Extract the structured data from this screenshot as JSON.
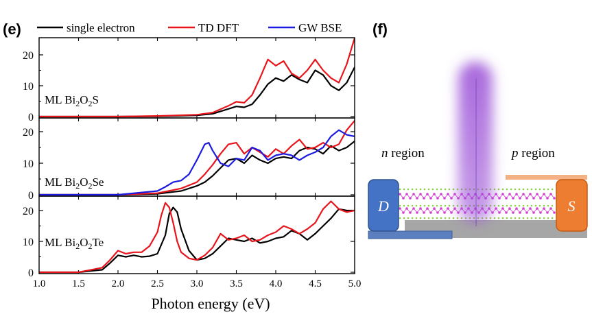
{
  "chart_data": {
    "type": "line",
    "panel_labels": {
      "e": "(e)",
      "f": "(f)"
    },
    "legend": {
      "placement": "top",
      "entries": [
        {
          "name": "single electron",
          "color": "#000000"
        },
        {
          "name": "TD DFT",
          "color": "#e8141b"
        },
        {
          "name": "GW BSE",
          "color": "#1a1ae0"
        }
      ]
    },
    "xlabel": "Photon energy (eV)",
    "xlim": [
      1.0,
      5.0
    ],
    "xticks": [
      "1.0",
      "1.5",
      "2.0",
      "2.5",
      "3.0",
      "3.5",
      "4.0",
      "4.5",
      "5.0"
    ],
    "panels": [
      {
        "label_main": "ML Bi",
        "sub1": "2",
        "label_mid": "O",
        "sub2": "2",
        "label_end": "S",
        "ylim": [
          0,
          25
        ],
        "yticks": [
          "0",
          "10",
          "20"
        ],
        "series": [
          {
            "name": "single electron",
            "color": "#000000",
            "x": [
              1.0,
              2.0,
              2.5,
              3.0,
              3.2,
              3.4,
              3.5,
              3.6,
              3.7,
              3.8,
              3.9,
              4.0,
              4.1,
              4.2,
              4.3,
              4.4,
              4.5,
              4.6,
              4.7,
              4.8,
              4.9,
              5.0
            ],
            "y": [
              0,
              0,
              0.1,
              0.4,
              0.9,
              2.5,
              3.3,
              3.0,
              4.0,
              7.0,
              10.5,
              12.5,
              11.5,
              13.5,
              12.0,
              11.0,
              15.0,
              13.5,
              10.0,
              8.5,
              11.0,
              16.0
            ]
          },
          {
            "name": "TD DFT",
            "color": "#e8141b",
            "x": [
              1.0,
              2.0,
              2.5,
              3.0,
              3.2,
              3.4,
              3.5,
              3.6,
              3.7,
              3.8,
              3.9,
              4.0,
              4.1,
              4.2,
              4.3,
              4.4,
              4.5,
              4.6,
              4.7,
              4.8,
              4.9,
              5.0
            ],
            "y": [
              0,
              0,
              0.2,
              0.6,
              1.3,
              3.5,
              4.8,
              4.5,
              7.0,
              12.5,
              18.5,
              16.5,
              18.0,
              14.0,
              12.5,
              15.0,
              18.5,
              15.0,
              12.5,
              11.0,
              17.0,
              25.5
            ]
          }
        ]
      },
      {
        "label_main": "ML Bi",
        "sub1": "2",
        "label_mid": "O",
        "sub2": "2",
        "label_end": "Se",
        "ylim": [
          0,
          25
        ],
        "yticks": [
          "0",
          "10",
          "20"
        ],
        "series": [
          {
            "name": "single electron",
            "color": "#000000",
            "x": [
              1.0,
              2.0,
              2.5,
              2.8,
              3.0,
              3.1,
              3.2,
              3.3,
              3.4,
              3.5,
              3.6,
              3.7,
              3.8,
              3.9,
              4.0,
              4.1,
              4.2,
              4.3,
              4.4,
              4.5,
              4.6,
              4.7,
              4.8,
              4.9,
              5.0
            ],
            "y": [
              0,
              0,
              0.3,
              1.2,
              2.8,
              4.0,
              6.0,
              8.5,
              11.0,
              11.5,
              10.0,
              12.5,
              11.0,
              10.0,
              11.5,
              12.0,
              11.5,
              14.0,
              15.0,
              14.5,
              13.0,
              15.5,
              14.0,
              15.0,
              17.0
            ]
          },
          {
            "name": "TD DFT",
            "color": "#e8141b",
            "x": [
              1.0,
              2.0,
              2.5,
              2.8,
              3.0,
              3.1,
              3.2,
              3.3,
              3.4,
              3.5,
              3.6,
              3.7,
              3.8,
              3.9,
              4.0,
              4.1,
              4.2,
              4.3,
              4.4,
              4.5,
              4.6,
              4.7,
              4.8,
              4.9,
              5.0
            ],
            "y": [
              0,
              0,
              0.5,
              2.0,
              4.0,
              6.5,
              9.5,
              13.0,
              16.0,
              16.5,
              13.0,
              15.0,
              13.5,
              12.0,
              14.5,
              13.0,
              15.5,
              17.5,
              14.5,
              15.0,
              16.5,
              15.0,
              16.0,
              20.5,
              23.5
            ]
          },
          {
            "name": "GW BSE",
            "color": "#1a1ae0",
            "x": [
              1.0,
              2.0,
              2.5,
              2.6,
              2.7,
              2.8,
              2.9,
              3.0,
              3.1,
              3.15,
              3.2,
              3.3,
              3.4,
              3.5,
              3.6,
              3.7,
              3.8,
              3.9,
              4.0,
              4.1,
              4.2,
              4.3,
              4.4,
              4.5,
              4.6,
              4.7,
              4.8,
              4.9,
              5.0
            ],
            "y": [
              0,
              0,
              1.2,
              2.5,
              4.0,
              4.5,
              6.5,
              11.0,
              16.0,
              16.5,
              14.0,
              10.0,
              9.0,
              11.5,
              11.0,
              15.0,
              14.0,
              11.0,
              12.5,
              13.0,
              12.5,
              11.0,
              12.5,
              13.5,
              15.0,
              18.5,
              20.5,
              19.0,
              18.5
            ]
          }
        ]
      },
      {
        "label_main": "ML Bi",
        "sub1": "2",
        "label_mid": "O",
        "sub2": "2",
        "label_end": "Te",
        "ylim": [
          0,
          25
        ],
        "yticks": [
          "0",
          "10",
          "20"
        ],
        "series": [
          {
            "name": "single electron",
            "color": "#000000",
            "x": [
              1.0,
              1.5,
              1.8,
              1.9,
              2.0,
              2.1,
              2.2,
              2.3,
              2.4,
              2.5,
              2.6,
              2.65,
              2.7,
              2.75,
              2.8,
              2.9,
              3.0,
              3.1,
              3.2,
              3.3,
              3.4,
              3.5,
              3.6,
              3.7,
              3.8,
              3.9,
              4.0,
              4.1,
              4.2,
              4.3,
              4.4,
              4.5,
              4.6,
              4.7,
              4.8,
              4.9,
              5.0
            ],
            "y": [
              0,
              0,
              0.8,
              3.0,
              5.5,
              5.0,
              5.5,
              5.0,
              5.2,
              6.0,
              12.0,
              19.0,
              21.0,
              19.5,
              14.0,
              7.0,
              4.0,
              4.5,
              6.0,
              8.5,
              11.0,
              10.5,
              10.0,
              11.0,
              9.5,
              10.0,
              11.0,
              11.5,
              13.5,
              12.5,
              10.5,
              12.5,
              15.0,
              17.5,
              20.5,
              20.0,
              20.0
            ]
          },
          {
            "name": "TD DFT",
            "color": "#e8141b",
            "x": [
              1.0,
              1.5,
              1.8,
              1.9,
              2.0,
              2.1,
              2.2,
              2.3,
              2.4,
              2.5,
              2.55,
              2.6,
              2.65,
              2.7,
              2.75,
              2.8,
              2.9,
              3.0,
              3.1,
              3.2,
              3.3,
              3.4,
              3.5,
              3.6,
              3.7,
              3.8,
              3.9,
              4.0,
              4.1,
              4.2,
              4.3,
              4.4,
              4.5,
              4.6,
              4.7,
              4.8,
              4.9,
              5.0
            ],
            "y": [
              0,
              0,
              1.5,
              4.0,
              7.0,
              6.0,
              6.5,
              6.5,
              8.5,
              13.0,
              18.5,
              22.5,
              21.0,
              16.0,
              10.0,
              6.5,
              4.5,
              4.0,
              5.5,
              8.0,
              12.5,
              10.5,
              11.0,
              12.0,
              10.0,
              10.5,
              12.0,
              13.0,
              15.0,
              14.0,
              12.5,
              14.0,
              16.0,
              20.5,
              23.0,
              20.5,
              19.5,
              20.0
            ]
          }
        ]
      }
    ]
  },
  "schematic": {
    "n_label_italic": "n",
    "n_label_rest": " region",
    "p_label_italic": "p",
    "p_label_rest": " region",
    "drain": "D",
    "source": "S",
    "colors": {
      "light_beam": "#9a4fd6",
      "drain": "#4472c4",
      "source": "#ed7d31",
      "substrate": "#a6a6a6",
      "bottom_electrode": "#5b7fbf",
      "top_electrode": "#f4b183",
      "lattice_atoms": "#d43fd4",
      "lattice_dots": "#8cd146"
    }
  }
}
